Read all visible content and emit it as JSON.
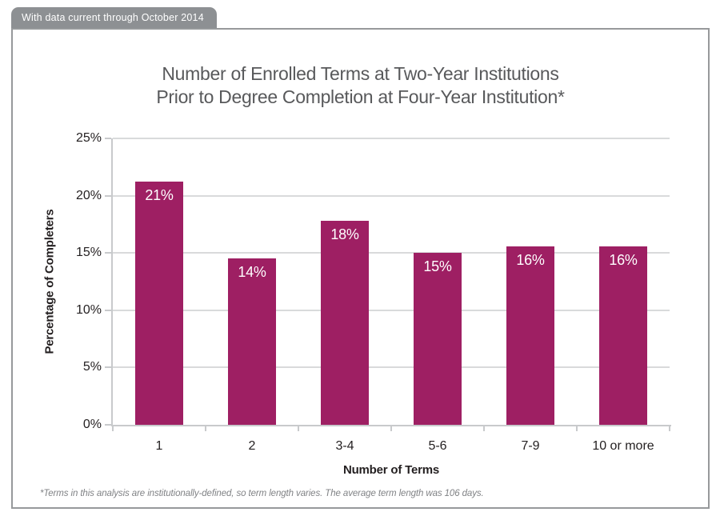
{
  "badge": {
    "text": "With data current through October 2014"
  },
  "title": {
    "line1": "Number of Enrolled Terms at Two-Year Institutions",
    "line2": "Prior to Degree Completion at Four-Year Institution*"
  },
  "footnote": "*Terms in this analysis are institutionally-defined, so term length varies. The average term length was 106 days.",
  "colors": {
    "bar": "#9e1f63",
    "badge_bg": "#8d9093",
    "frame_border": "#97999b",
    "gridline": "#d9dadb",
    "axis_line": "#c8cacc",
    "title_text": "#58595b",
    "tick_text": "#231f20",
    "bar_label_text": "#ffffff",
    "footnote_text": "#808285"
  },
  "chart_data": {
    "type": "bar",
    "title": "Number of Enrolled Terms at Two-Year Institutions Prior to Degree Completion at Four-Year Institution*",
    "categories": [
      "1",
      "2",
      "3-4",
      "5-6",
      "7-9",
      "10 or more"
    ],
    "values": [
      21.2,
      14.5,
      17.8,
      15.0,
      15.6,
      15.6
    ],
    "bar_labels": [
      "21%",
      "14%",
      "18%",
      "15%",
      "16%",
      "16%"
    ],
    "xlabel": "Number of Terms",
    "ylabel": "Percentage of Completers",
    "ylim": [
      0,
      25
    ],
    "ytick_step": 5,
    "ytick_labels": [
      "0%",
      "5%",
      "10%",
      "15%",
      "20%",
      "25%"
    ],
    "grid": "horizontal gridlines at each 5%",
    "legend_position": "none"
  }
}
